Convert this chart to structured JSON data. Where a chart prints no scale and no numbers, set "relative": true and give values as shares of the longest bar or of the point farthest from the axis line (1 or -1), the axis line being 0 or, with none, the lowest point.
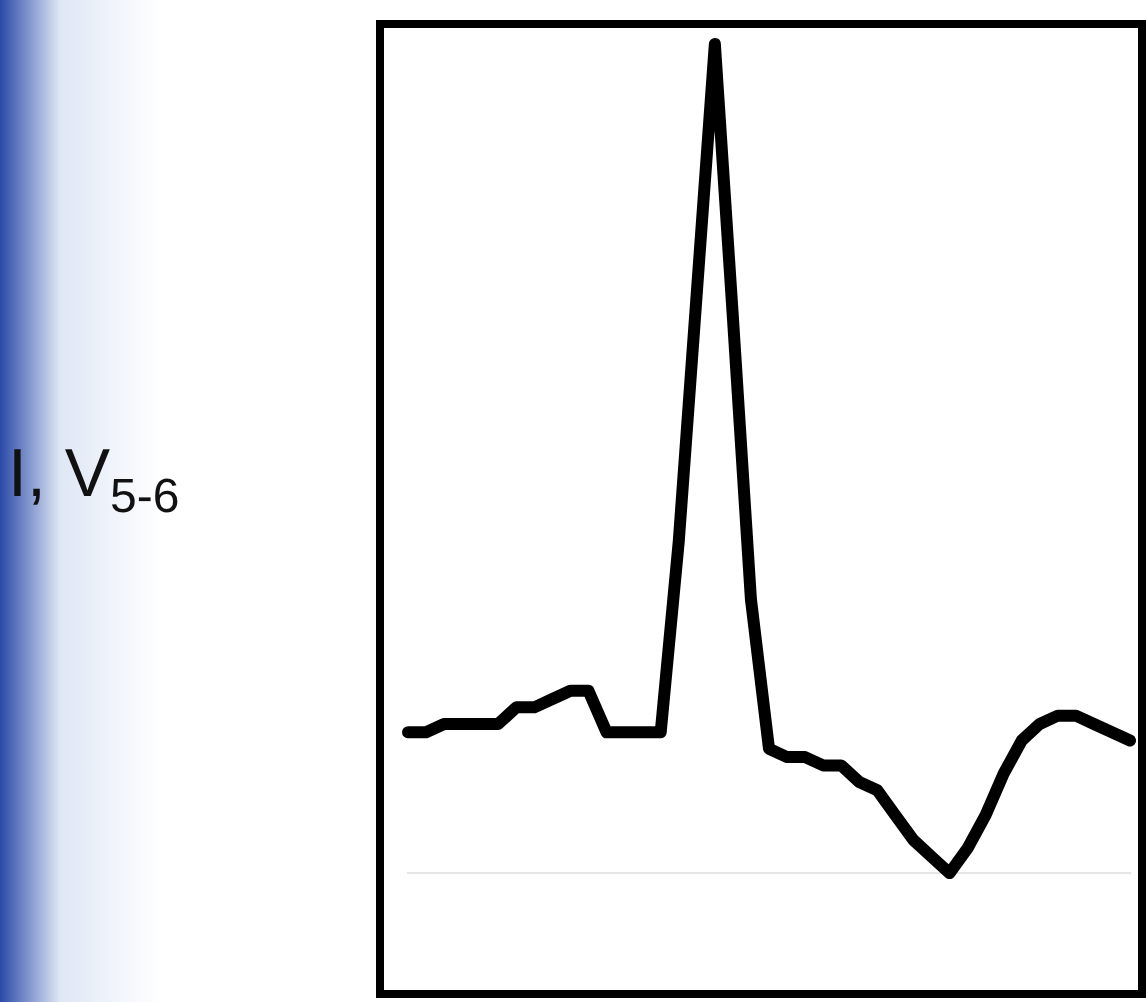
{
  "chart_data": {
    "type": "line",
    "ylabel": "I, V$_{5-6}$",
    "relative": true,
    "color": "#000000",
    "marker": "none",
    "line_style": "solid",
    "legend": false,
    "categories": [
      null,
      null,
      null,
      null,
      null,
      null,
      null,
      null,
      null,
      null,
      null,
      null,
      null,
      null,
      null,
      null,
      null,
      null,
      null,
      null,
      null,
      null,
      null,
      null,
      null,
      null,
      null,
      null,
      null,
      null,
      null,
      null,
      null,
      null,
      null,
      null,
      null,
      null,
      null,
      null,
      null
    ],
    "values": [
      0.17,
      0.17,
      0.18,
      0.18,
      0.18,
      0.18,
      0.2,
      0.2,
      0.21,
      0.22,
      0.22,
      0.17,
      0.17,
      0.17,
      0.17,
      0.4,
      0.7,
      1.0,
      0.67,
      0.33,
      0.15,
      0.14,
      0.14,
      0.13,
      0.13,
      0.11,
      0.1,
      0.07,
      0.04,
      0.02,
      0,
      0.03,
      0.07,
      0.12,
      0.16,
      0.18,
      0.19,
      0.19,
      0.18,
      0.17,
      0.16
    ]
  }
}
